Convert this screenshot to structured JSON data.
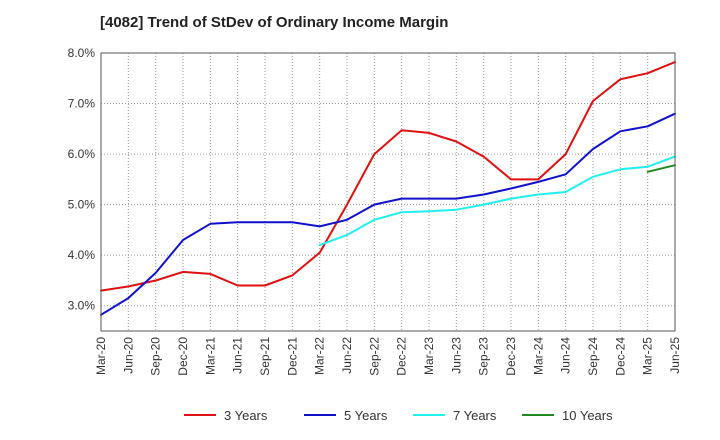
{
  "chart_data": {
    "type": "line",
    "title": "[4082]  Trend of StDev of Ordinary Income Margin",
    "xlabel": "",
    "ylabel": "",
    "ylim": [
      2.5,
      8.0
    ],
    "yticks": [
      "3.0%",
      "4.0%",
      "5.0%",
      "6.0%",
      "7.0%",
      "8.0%"
    ],
    "ytick_values": [
      3.0,
      4.0,
      5.0,
      6.0,
      7.0,
      8.0
    ],
    "categories": [
      "Mar-20",
      "Jun-20",
      "Sep-20",
      "Dec-20",
      "Mar-21",
      "Jun-21",
      "Sep-21",
      "Dec-21",
      "Mar-22",
      "Jun-22",
      "Sep-22",
      "Dec-22",
      "Mar-23",
      "Jun-23",
      "Sep-23",
      "Dec-23",
      "Mar-24",
      "Jun-24",
      "Sep-24",
      "Dec-24",
      "Mar-25",
      "Jun-25"
    ],
    "grid": true,
    "legend_position": "bottom",
    "series": [
      {
        "name": "3 Years",
        "color": "#dd1111",
        "values": [
          3.3,
          3.38,
          3.5,
          3.67,
          3.63,
          3.4,
          3.4,
          3.6,
          4.05,
          5.0,
          6.0,
          6.47,
          6.42,
          6.25,
          5.95,
          5.5,
          5.5,
          6.0,
          7.05,
          7.48,
          7.6,
          7.82
        ]
      },
      {
        "name": "5 Years",
        "color": "#1111cc",
        "values": [
          2.82,
          3.15,
          3.65,
          4.3,
          4.62,
          4.65,
          4.65,
          4.65,
          4.57,
          4.7,
          5.0,
          5.12,
          5.12,
          5.12,
          5.2,
          5.32,
          5.45,
          5.6,
          6.1,
          6.45,
          6.55,
          6.8
        ]
      },
      {
        "name": "7 Years",
        "color": "#22eeee",
        "values": [
          null,
          null,
          null,
          null,
          null,
          null,
          null,
          null,
          4.2,
          4.4,
          4.7,
          4.85,
          4.87,
          4.9,
          5.0,
          5.12,
          5.2,
          5.25,
          5.55,
          5.7,
          5.75,
          5.95
        ]
      },
      {
        "name": "10 Years",
        "color": "#228822",
        "values": [
          null,
          null,
          null,
          null,
          null,
          null,
          null,
          null,
          null,
          null,
          null,
          null,
          null,
          null,
          null,
          null,
          null,
          null,
          null,
          null,
          5.65,
          5.78
        ]
      }
    ]
  }
}
